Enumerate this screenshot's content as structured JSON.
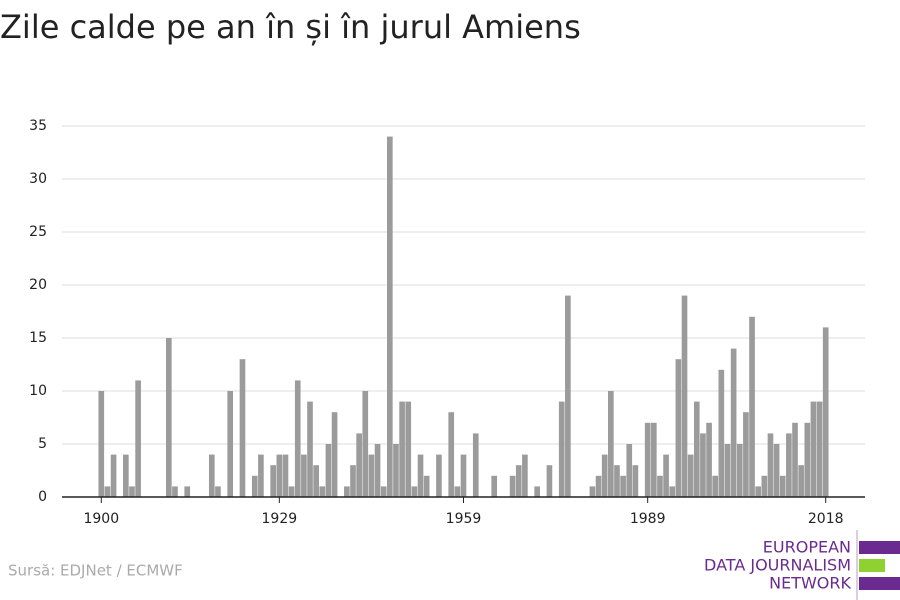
{
  "chart_data": {
    "type": "bar",
    "title": "Zile calde pe an în și în jurul Amiens",
    "source": "Sursă: EDJNet / ECMWF",
    "color": "#9b9b9b",
    "x": [
      1900,
      1901,
      1902,
      1903,
      1904,
      1905,
      1906,
      1907,
      1908,
      1909,
      1910,
      1911,
      1912,
      1913,
      1914,
      1915,
      1916,
      1917,
      1918,
      1919,
      1920,
      1921,
      1922,
      1923,
      1924,
      1925,
      1926,
      1927,
      1928,
      1929,
      1930,
      1931,
      1932,
      1933,
      1934,
      1935,
      1936,
      1937,
      1938,
      1939,
      1940,
      1941,
      1942,
      1943,
      1944,
      1945,
      1946,
      1947,
      1948,
      1949,
      1950,
      1951,
      1952,
      1953,
      1954,
      1955,
      1956,
      1957,
      1958,
      1959,
      1960,
      1961,
      1962,
      1963,
      1964,
      1965,
      1966,
      1967,
      1968,
      1969,
      1970,
      1971,
      1972,
      1973,
      1974,
      1975,
      1976,
      1977,
      1978,
      1979,
      1980,
      1981,
      1982,
      1983,
      1984,
      1985,
      1986,
      1987,
      1988,
      1989,
      1990,
      1991,
      1992,
      1993,
      1994,
      1995,
      1996,
      1997,
      1998,
      1999,
      2000,
      2001,
      2002,
      2003,
      2004,
      2005,
      2006,
      2007,
      2008,
      2009,
      2010,
      2011,
      2012,
      2013,
      2014,
      2015,
      2016,
      2017,
      2018
    ],
    "values": [
      10,
      1,
      4,
      0,
      4,
      1,
      11,
      0,
      0,
      0,
      0,
      15,
      1,
      0,
      1,
      0,
      0,
      0,
      4,
      1,
      0,
      10,
      0,
      13,
      0,
      2,
      4,
      0,
      3,
      4,
      4,
      1,
      11,
      4,
      9,
      3,
      1,
      5,
      8,
      0,
      1,
      3,
      6,
      10,
      4,
      5,
      1,
      34,
      5,
      9,
      9,
      1,
      4,
      2,
      0,
      4,
      0,
      8,
      1,
      4,
      0,
      6,
      0,
      0,
      2,
      0,
      0,
      2,
      3,
      4,
      0,
      1,
      0,
      3,
      0,
      9,
      19,
      0,
      0,
      0,
      1,
      2,
      4,
      10,
      3,
      2,
      5,
      3,
      0,
      7,
      7,
      2,
      4,
      1,
      13,
      19,
      4,
      9,
      6,
      7,
      2,
      12,
      5,
      14,
      5,
      8,
      17,
      1,
      2,
      6,
      5,
      2,
      6,
      7,
      3,
      7,
      9,
      9,
      16
    ],
    "xlim": [
      1893.6,
      2024.4
    ],
    "xticks": [
      1900,
      1929,
      1959,
      1989,
      2018
    ],
    "ylim": [
      0,
      35
    ],
    "yticks": [
      0,
      5,
      10,
      15,
      20,
      25,
      30,
      35
    ],
    "grid": true
  },
  "logo": {
    "lines": [
      "EUROPEAN",
      "DATA JOURNALISM",
      "NETWORK"
    ],
    "color": "#6b2a8f",
    "bar_colors": [
      "#6b2a8f",
      "#8fd130",
      "#6b2a8f"
    ]
  }
}
